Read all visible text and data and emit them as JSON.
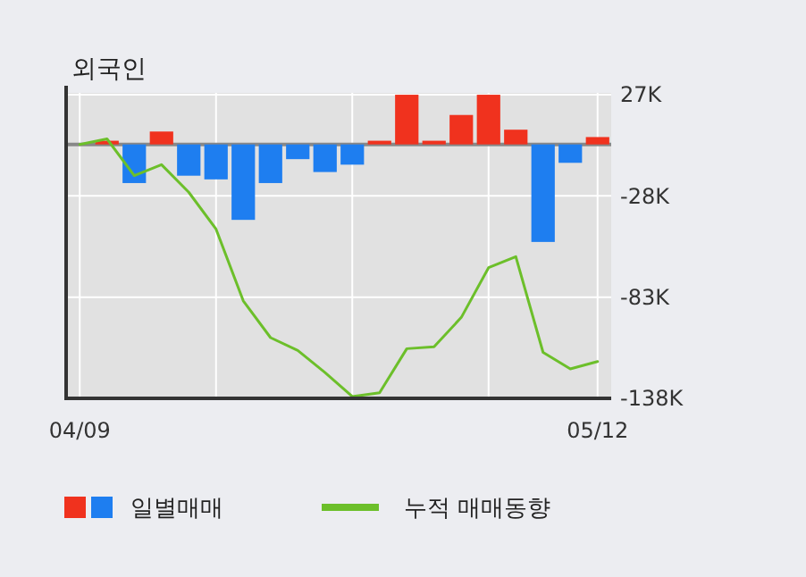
{
  "chart_data": {
    "type": "bar",
    "title": "외국인",
    "categories": [
      "04/09",
      null,
      null,
      null,
      null,
      null,
      null,
      null,
      null,
      null,
      null,
      null,
      null,
      null,
      null,
      null,
      null,
      null,
      null,
      "05/12"
    ],
    "series": [
      {
        "name": "일별매매",
        "colors": [
          "#f0321e",
          "#f0321e",
          "#1e7ef0",
          "#f0321e",
          "#1e7ef0",
          "#1e7ef0",
          "#1e7ef0",
          "#1e7ef0",
          "#1e7ef0",
          "#1e7ef0",
          "#1e7ef0",
          "#f0321e",
          "#f0321e",
          "#f0321e",
          "#f0321e",
          "#f0321e",
          "#f0321e",
          "#1e7ef0",
          "#1e7ef0",
          "#f0321e"
        ],
        "values": [
          0,
          2000,
          -21000,
          7000,
          -17000,
          -19000,
          -41000,
          -21000,
          -8000,
          -15000,
          -11000,
          2000,
          27000,
          2000,
          16000,
          27000,
          8000,
          -53000,
          -10000,
          4000
        ]
      },
      {
        "name": "누적 매매동향",
        "type": "line",
        "color": "#6cbf2a",
        "values": [
          0,
          3000,
          -17000,
          -11000,
          -26000,
          -46000,
          -85000,
          -105000,
          -112000,
          -124000,
          -137000,
          -135000,
          -111000,
          -110000,
          -94000,
          -67000,
          -61000,
          -113000,
          -122000,
          -118000
        ]
      }
    ],
    "ylim": [
      -138000,
      28000
    ],
    "yticks": [
      {
        "value": 27000,
        "label": "27K"
      },
      {
        "value": -28000,
        "label": "-28K"
      },
      {
        "value": -83000,
        "label": "-83K"
      },
      {
        "value": -138000,
        "label": "-138K"
      }
    ],
    "ref_lines": [
      {
        "axis": "y",
        "value": 0,
        "color": "#888888"
      }
    ],
    "grid": true,
    "legend": "bottom"
  }
}
